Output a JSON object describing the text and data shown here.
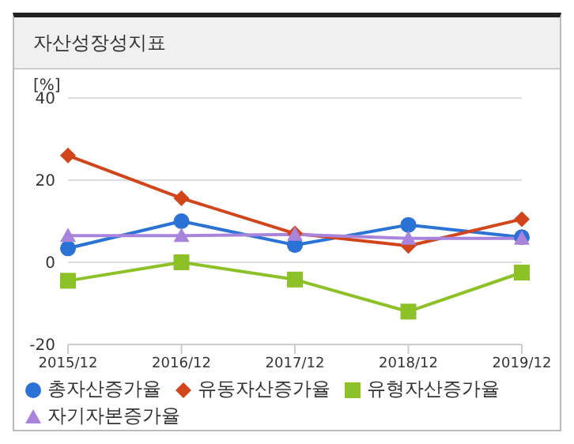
{
  "chart_data": {
    "type": "line",
    "title": "자산성장성지표",
    "ylabel": "[%]",
    "categories": [
      "2015/12",
      "2016/12",
      "2017/12",
      "2018/12",
      "2019/12"
    ],
    "series": [
      {
        "name": "총자산증가율",
        "color": "#2a72d6",
        "marker": "circle",
        "values": [
          3.4,
          10,
          4.2,
          9.1,
          6.1
        ]
      },
      {
        "name": "유동자산증가율",
        "color": "#d2441a",
        "marker": "diamond",
        "values": [
          26,
          15.6,
          7,
          4,
          10.5
        ]
      },
      {
        "name": "유형자산증가율",
        "color": "#8cc227",
        "marker": "square",
        "values": [
          -4.5,
          0,
          -4.2,
          -12,
          -2.5
        ]
      },
      {
        "name": "자기자본증가율",
        "color": "#a884dc",
        "marker": "triangle",
        "values": [
          6.5,
          6.5,
          6.8,
          5.8,
          5.8
        ]
      }
    ],
    "ylim": [
      -20,
      40
    ],
    "yticks": [
      -20,
      0,
      20,
      40
    ],
    "grid": "y",
    "legend": "bottom"
  }
}
